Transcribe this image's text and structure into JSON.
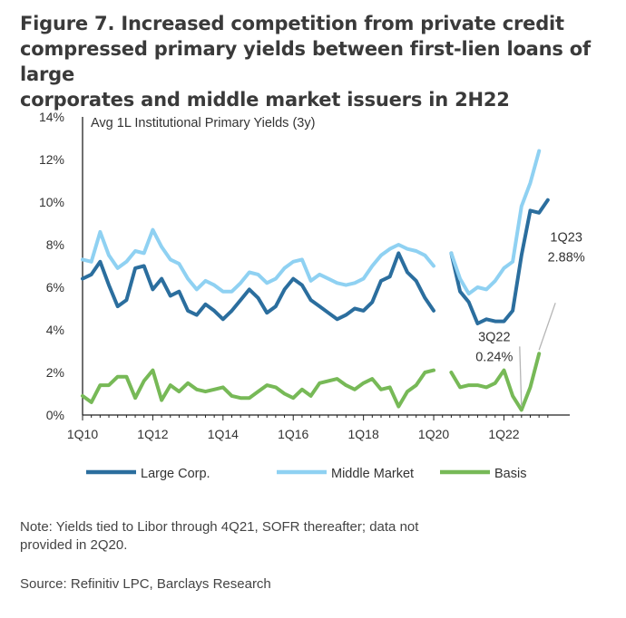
{
  "figure": {
    "title_lines": [
      "Figure 7. Increased competition from private credit",
      "compressed primary yields between first-lien loans of large",
      "corporates and middle market issuers in 2H22"
    ],
    "note_lines": [
      "Note: Yields tied to Libor through 4Q21, SOFR thereafter; data not",
      "provided in 2Q20."
    ],
    "source": "Source: Refinitiv LPC, Barclays Research"
  },
  "colors": {
    "large_corp": "#2b6e9e",
    "middle_market": "#8fd1f2",
    "basis": "#77b957",
    "annotation_line": "#b5b5b5"
  },
  "chart_data": {
    "type": "line",
    "title": "Avg 1L Institutional Primary Yields (3y)",
    "xlabel": "",
    "ylabel": "",
    "ylim": [
      0,
      14
    ],
    "y_ticks": [
      "0%",
      "2%",
      "4%",
      "6%",
      "8%",
      "10%",
      "12%",
      "14%"
    ],
    "x_ticks": [
      "1Q10",
      "1Q12",
      "1Q14",
      "1Q16",
      "1Q18",
      "1Q20",
      "1Q22"
    ],
    "x": [
      "1Q10",
      "2Q10",
      "3Q10",
      "4Q10",
      "1Q11",
      "2Q11",
      "3Q11",
      "4Q11",
      "1Q12",
      "2Q12",
      "3Q12",
      "4Q12",
      "1Q13",
      "2Q13",
      "3Q13",
      "4Q13",
      "1Q14",
      "2Q14",
      "3Q14",
      "4Q14",
      "1Q15",
      "2Q15",
      "3Q15",
      "4Q15",
      "1Q16",
      "2Q16",
      "3Q16",
      "4Q16",
      "1Q17",
      "2Q17",
      "3Q17",
      "4Q17",
      "1Q18",
      "2Q18",
      "3Q18",
      "4Q18",
      "1Q19",
      "2Q19",
      "3Q19",
      "4Q19",
      "1Q20",
      "2Q20",
      "3Q20",
      "4Q20",
      "1Q21",
      "2Q21",
      "3Q21",
      "4Q21",
      "1Q22",
      "2Q22",
      "3Q22",
      "4Q22",
      "1Q23",
      "2Q23"
    ],
    "grid": false,
    "legend_position": "bottom",
    "series": [
      {
        "name": "Large Corp.",
        "color_key": "large_corp",
        "values": [
          6.4,
          6.6,
          7.2,
          6.1,
          5.1,
          5.4,
          6.9,
          7.0,
          5.9,
          6.4,
          5.6,
          5.8,
          4.9,
          4.7,
          5.2,
          4.9,
          4.5,
          4.9,
          5.4,
          5.9,
          5.5,
          4.8,
          5.1,
          5.9,
          6.4,
          6.1,
          5.4,
          5.1,
          4.8,
          4.5,
          4.7,
          5.0,
          4.9,
          5.3,
          6.3,
          6.5,
          7.6,
          6.7,
          6.3,
          5.5,
          4.9,
          null,
          7.6,
          5.8,
          5.3,
          4.3,
          4.5,
          4.4,
          4.4,
          4.9,
          7.5,
          9.6,
          9.5,
          10.1
        ]
      },
      {
        "name": "Middle Market",
        "color_key": "middle_market",
        "values": [
          7.3,
          7.2,
          8.6,
          7.5,
          6.9,
          7.2,
          7.7,
          7.6,
          8.7,
          7.9,
          7.3,
          7.1,
          6.4,
          5.9,
          6.3,
          6.1,
          5.8,
          5.8,
          6.2,
          6.7,
          6.6,
          6.2,
          6.4,
          6.9,
          7.2,
          7.3,
          6.3,
          6.6,
          6.4,
          6.2,
          6.1,
          6.2,
          6.4,
          7.0,
          7.5,
          7.8,
          8.0,
          7.8,
          7.7,
          7.5,
          7.0,
          null,
          7.6,
          6.4,
          5.7,
          6.0,
          5.9,
          6.3,
          6.9,
          7.2,
          9.8,
          10.9,
          12.4,
          null
        ]
      },
      {
        "name": "Basis",
        "color_key": "basis",
        "values": [
          0.9,
          0.6,
          1.4,
          1.4,
          1.8,
          1.8,
          0.8,
          1.6,
          2.1,
          0.7,
          1.4,
          1.1,
          1.5,
          1.2,
          1.1,
          1.2,
          1.3,
          0.9,
          0.8,
          0.8,
          1.1,
          1.4,
          1.3,
          1.0,
          0.8,
          1.2,
          0.9,
          1.5,
          1.6,
          1.7,
          1.4,
          1.2,
          1.5,
          1.7,
          1.2,
          1.3,
          0.4,
          1.1,
          1.4,
          2.0,
          2.1,
          null,
          2.0,
          1.3,
          1.4,
          1.4,
          1.3,
          1.5,
          2.1,
          0.9,
          0.24,
          1.3,
          2.88,
          null
        ]
      }
    ],
    "annotations": [
      {
        "period": "3Q22",
        "value_text": "0.24%",
        "value": 0.24
      },
      {
        "period": "1Q23",
        "value_text": "2.88%",
        "value": 2.88
      }
    ]
  }
}
